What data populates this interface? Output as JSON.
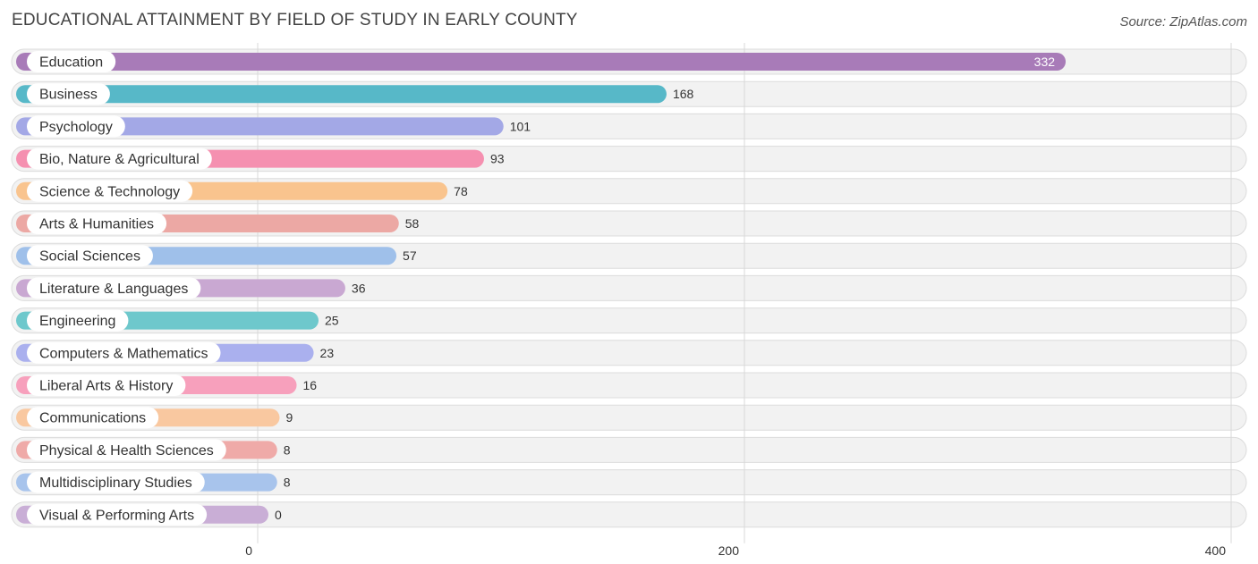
{
  "header": {
    "title": "EDUCATIONAL ATTAINMENT BY FIELD OF STUDY IN EARLY COUNTY",
    "source": "Source: ZipAtlas.com"
  },
  "chart_data": {
    "type": "bar",
    "orientation": "horizontal",
    "title": "EDUCATIONAL ATTAINMENT BY FIELD OF STUDY IN EARLY COUNTY",
    "xlabel": "",
    "ylabel": "",
    "xlim": [
      0,
      400
    ],
    "ticks": [
      0,
      200,
      400
    ],
    "tick_labels": [
      "0",
      "200",
      "400"
    ],
    "grid": true,
    "categories": [
      "Education",
      "Business",
      "Psychology",
      "Bio, Nature & Agricultural",
      "Science & Technology",
      "Arts & Humanities",
      "Social Sciences",
      "Literature & Languages",
      "Engineering",
      "Computers & Mathematics",
      "Liberal Arts & History",
      "Communications",
      "Physical & Health Sciences",
      "Multidisciplinary Studies",
      "Visual & Performing Arts"
    ],
    "values": [
      332,
      168,
      101,
      93,
      78,
      58,
      57,
      36,
      25,
      23,
      16,
      9,
      8,
      8,
      0
    ],
    "value_labels": [
      "332",
      "168",
      "101",
      "93",
      "78",
      "58",
      "57",
      "36",
      "25",
      "23",
      "16",
      "9",
      "8",
      "8",
      "0"
    ],
    "colors": [
      "#a87bb8",
      "#57b8c8",
      "#a3a8e6",
      "#f590b0",
      "#f9c48e",
      "#eca8a4",
      "#9fc0ea",
      "#c9a8d2",
      "#6ec8cc",
      "#aab0ee",
      "#f7a0bc",
      "#f9c8a0",
      "#efaaa8",
      "#a8c4ec",
      "#c9aed6"
    ]
  }
}
